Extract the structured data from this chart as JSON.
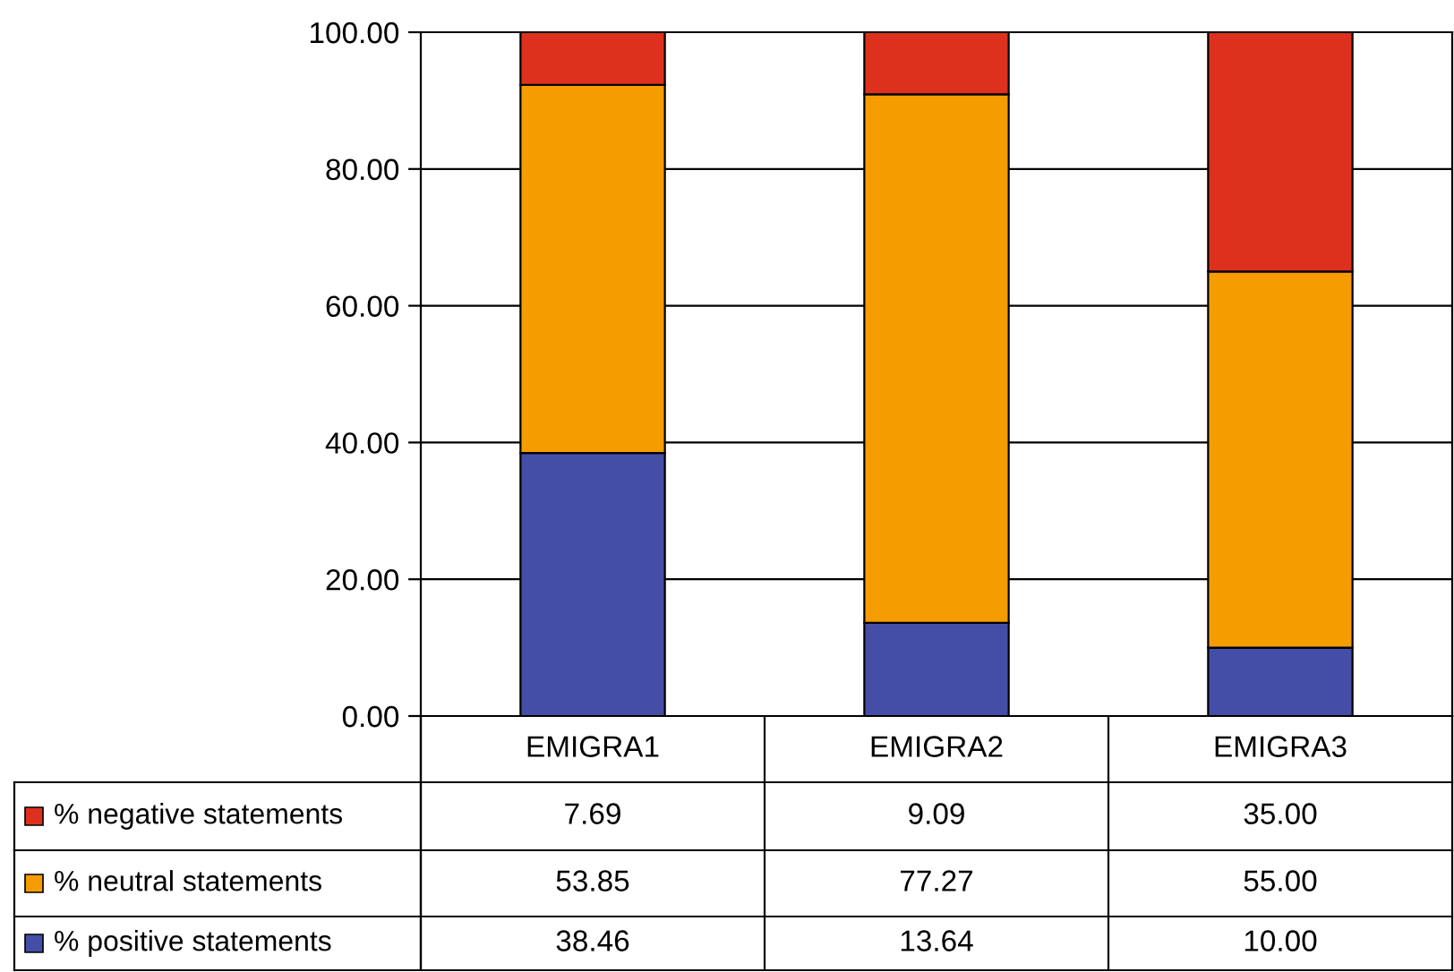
{
  "chart_data": {
    "type": "bar",
    "stacked": true,
    "categories": [
      "EMIGRA1",
      "EMIGRA2",
      "EMIGRA3"
    ],
    "series": [
      {
        "name": "% positive statements",
        "color": "#454ea6",
        "values": [
          38.46,
          13.64,
          10.0
        ],
        "value_labels": [
          "38.46",
          "13.64",
          "10.00"
        ]
      },
      {
        "name": "% neutral statements",
        "color": "#f59c00",
        "values": [
          53.85,
          77.27,
          55.0
        ],
        "value_labels": [
          "53.85",
          "77.27",
          "55.00"
        ]
      },
      {
        "name": "% negative statements",
        "color": "#dd311e",
        "values": [
          7.69,
          9.09,
          35.0
        ],
        "value_labels": [
          "7.69",
          "9.09",
          "35.00"
        ]
      }
    ],
    "ylim": [
      0,
      100
    ],
    "yticks": [
      {
        "value": 0,
        "label": "0.00"
      },
      {
        "value": 20,
        "label": "20.00"
      },
      {
        "value": 40,
        "label": "40.00"
      },
      {
        "value": 60,
        "label": "60.00"
      },
      {
        "value": 80,
        "label": "80.00"
      },
      {
        "value": 100,
        "label": "100.00"
      }
    ],
    "grid": "y",
    "legend": "bottom"
  }
}
